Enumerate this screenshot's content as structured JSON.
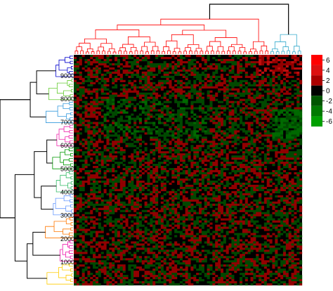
{
  "chart_data": {
    "type": "heatmap",
    "title": "",
    "xlabel": "",
    "ylabel": "",
    "row_tick_labels": [
      "9000",
      "8000",
      "7000",
      "6000",
      "5000",
      "4000",
      "3000",
      "2000",
      "1000"
    ],
    "row_tick_values": [
      9000,
      8000,
      7000,
      6000,
      5000,
      4000,
      3000,
      2000,
      1000
    ],
    "row_range": [
      1,
      9900
    ],
    "n_columns": 84,
    "colorbar": {
      "tick_labels": [
        "6",
        "4",
        "2",
        "0",
        "-2",
        "-4",
        "-6"
      ],
      "tick_values": [
        6,
        4,
        2,
        0,
        -2,
        -4,
        -6
      ],
      "range": [
        -7,
        7
      ],
      "bands": [
        {
          "from": 5,
          "to": 7,
          "color": "#ff0000"
        },
        {
          "from": 3,
          "to": 5,
          "color": "#dd1010"
        },
        {
          "from": 1,
          "to": 3,
          "color": "#aa0000"
        },
        {
          "from": -1,
          "to": 1,
          "color": "#000000"
        },
        {
          "from": -3,
          "to": -1,
          "color": "#005500"
        },
        {
          "from": -5,
          "to": -3,
          "color": "#007a00"
        },
        {
          "from": -7,
          "to": -5,
          "color": "#00a000"
        }
      ]
    },
    "column_dendrogram": {
      "clusters": [
        {
          "color": "#ff0000",
          "leaves": 72
        },
        {
          "color": "#33aacc",
          "leaves": 12
        }
      ]
    },
    "row_dendrogram": {
      "cluster_colors": [
        "#0000cc",
        "#66cc33",
        "#3399dd",
        "#ee22aa",
        "#009900",
        "#33bb66",
        "#6699ff",
        "#ff7700",
        "#ee11aa",
        "#ffcc00"
      ]
    },
    "legend_placement": "right"
  }
}
